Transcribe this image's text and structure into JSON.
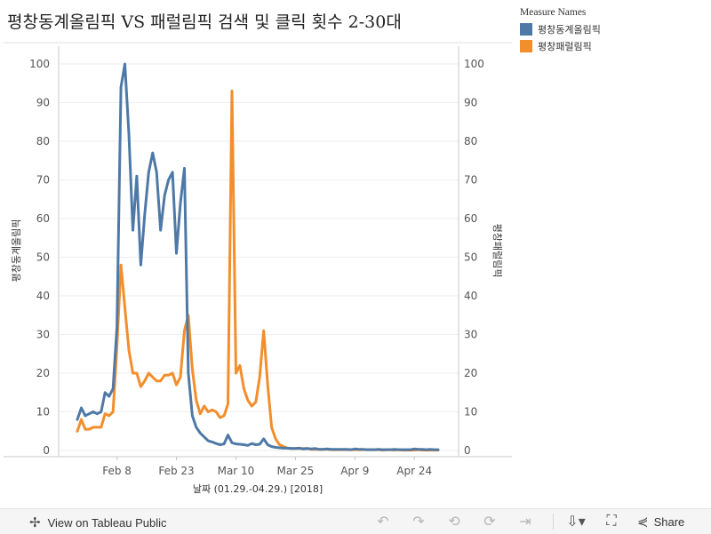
{
  "chart_data": {
    "type": "line",
    "title": "평창동계올림픽 VS 패럴림픽 검색 및 클릭 횟수 2-30대",
    "xlabel": "날짜 (01.29.-04.29.) [2018]",
    "ylabel_left": "평창동계올림픽",
    "ylabel_right": "평창패럴림픽",
    "ylim": [
      0,
      100
    ],
    "yticks": [
      0,
      10,
      20,
      30,
      40,
      50,
      60,
      70,
      80,
      90,
      100
    ],
    "x_range_days": [
      0,
      91
    ],
    "x_ticks": [
      {
        "label": "Feb 8",
        "day": 10
      },
      {
        "label": "Feb 23",
        "day": 25
      },
      {
        "label": "Mar 10",
        "day": 40
      },
      {
        "label": "Mar 25",
        "day": 55
      },
      {
        "label": "Apr 9",
        "day": 70
      },
      {
        "label": "Apr 24",
        "day": 85
      }
    ],
    "legend": {
      "title": "Measure Names",
      "position": "top-right"
    },
    "series": [
      {
        "name": "평창동계올림픽",
        "color": "#4e79a7",
        "x": [
          0,
          1,
          2,
          3,
          4,
          5,
          6,
          7,
          8,
          9,
          10,
          11,
          12,
          13,
          14,
          15,
          16,
          17,
          18,
          19,
          20,
          21,
          22,
          23,
          24,
          25,
          26,
          27,
          28,
          29,
          30,
          31,
          32,
          33,
          34,
          35,
          36,
          37,
          38,
          39,
          40,
          41,
          42,
          43,
          44,
          45,
          46,
          47,
          48,
          49,
          50,
          51,
          52,
          53,
          54,
          55,
          56,
          57,
          58,
          59,
          60,
          61,
          62,
          63,
          64,
          65,
          66,
          67,
          68,
          69,
          70,
          71,
          72,
          73,
          74,
          75,
          76,
          77,
          78,
          79,
          80,
          81,
          82,
          83,
          84,
          85,
          86,
          87,
          88,
          89,
          90,
          91
        ],
        "values": [
          8,
          11,
          9,
          9.5,
          10,
          9.5,
          10,
          15,
          14,
          16,
          32,
          94,
          100,
          82,
          57,
          71,
          48,
          61,
          72,
          77,
          72,
          57,
          66,
          70,
          72,
          51,
          64,
          73,
          20,
          9,
          6,
          4.5,
          3.5,
          2.5,
          2.2,
          1.8,
          1.5,
          1.7,
          4,
          2,
          1.7,
          1.6,
          1.5,
          1.3,
          1.8,
          1.5,
          1.6,
          3,
          1.5,
          1,
          0.8,
          0.7,
          0.6,
          0.6,
          0.5,
          0.5,
          0.6,
          0.4,
          0.5,
          0.4,
          0.5,
          0.3,
          0.3,
          0.4,
          0.3,
          0.3,
          0.3,
          0.3,
          0.3,
          0.2,
          0.4,
          0.3,
          0.3,
          0.2,
          0.2,
          0.2,
          0.3,
          0.2,
          0.2,
          0.2,
          0.3,
          0.2,
          0.2,
          0.2,
          0.2,
          0.4,
          0.3,
          0.3,
          0.2,
          0.3,
          0.2,
          0.2
        ]
      },
      {
        "name": "평창패럴림픽",
        "color": "#f28e2b",
        "x": [
          0,
          1,
          2,
          3,
          4,
          5,
          6,
          7,
          8,
          9,
          10,
          11,
          12,
          13,
          14,
          15,
          16,
          17,
          18,
          19,
          20,
          21,
          22,
          23,
          24,
          25,
          26,
          27,
          28,
          29,
          30,
          31,
          32,
          33,
          34,
          35,
          36,
          37,
          38,
          39,
          40,
          41,
          42,
          43,
          44,
          45,
          46,
          47,
          48,
          49,
          50,
          51,
          52,
          53,
          54,
          55,
          56,
          57,
          58,
          59,
          60,
          61,
          62,
          63,
          64,
          65,
          66,
          67,
          68,
          69,
          70,
          71,
          72,
          73,
          74,
          75,
          76,
          77,
          78,
          79,
          80,
          81,
          82,
          83,
          84,
          85,
          86,
          87,
          88,
          89,
          90,
          91
        ],
        "values": [
          5,
          8,
          5.5,
          5.5,
          6,
          6,
          6,
          9.5,
          9,
          10,
          27,
          48,
          37,
          26,
          20,
          20,
          16.5,
          18,
          20,
          19,
          18,
          18,
          19.5,
          19.5,
          20,
          17,
          19,
          31,
          35,
          21,
          13,
          9.5,
          11.5,
          10,
          10.5,
          10,
          8.5,
          9,
          12,
          93,
          20,
          22,
          16,
          13,
          11.5,
          12.5,
          19,
          31,
          17,
          6,
          3,
          1.5,
          1,
          0.6,
          0.5,
          0.5,
          0.5,
          0.5,
          0.5,
          0.3,
          0.3,
          0.3,
          0.3,
          0.3,
          0.2,
          0.2,
          0.2,
          0.2,
          0.2,
          0.2,
          0.2,
          0.2,
          0.2,
          0.2,
          0.2,
          0.2,
          0.2,
          0.1,
          0.2,
          0.2,
          0.1,
          0.2,
          0.1,
          0.1,
          0.1,
          0.1,
          0.2,
          0.1,
          0.1,
          0.1,
          0.1,
          0.1
        ]
      }
    ]
  },
  "toolbar": {
    "view_label": "View on Tableau Public",
    "share_label": "Share"
  }
}
